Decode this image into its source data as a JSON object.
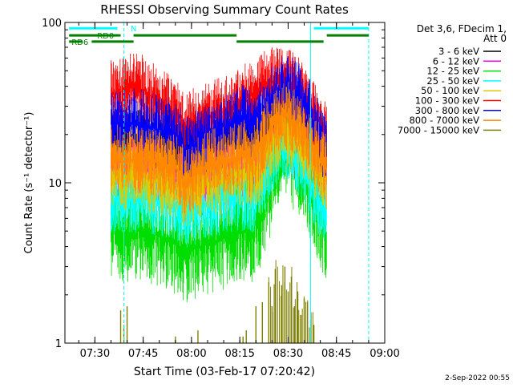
{
  "chart_data": {
    "type": "line",
    "title": "RHESSI Observing Summary Count Rates",
    "xlabel": "Start Time (03-Feb-17 07:20:42)",
    "ylabel": "Count Rate (s⁻¹ detector⁻¹)",
    "yscale": "log",
    "ylim": [
      1,
      100
    ],
    "xlim": [
      "07:20:42",
      "09:00:00"
    ],
    "x_ticks": [
      "07:30",
      "07:45",
      "08:00",
      "08:15",
      "08:30",
      "08:45",
      "09:00"
    ],
    "y_ticks": [
      "1",
      "10",
      "100"
    ],
    "legend_position": "right",
    "legend_header": [
      "Det 3,6, FDecim 1,",
      "Att 0"
    ],
    "timestamp": "2-Sep-2022 00:55",
    "x_units": "minutes after 07:00",
    "series": [
      {
        "name": "3 - 6 keV",
        "color": "#000000",
        "x": [
          35,
          38,
          42,
          45,
          48,
          52,
          56,
          58,
          62,
          66,
          70,
          73,
          76,
          79,
          82,
          84,
          86,
          88,
          90,
          92,
          94,
          96,
          97,
          98,
          99,
          100,
          101,
          102
        ],
        "y": [
          18,
          18,
          18,
          18,
          18,
          18,
          16.5,
          15,
          17,
          18,
          19,
          20,
          22,
          19,
          20,
          24,
          26,
          28,
          27,
          25,
          23,
          21,
          20,
          19,
          17,
          16.5,
          16,
          16
        ]
      },
      {
        "name": "6 - 12 keV",
        "color": "#ff00ff",
        "x": [
          35,
          38,
          42,
          45,
          48,
          52,
          56,
          58,
          62,
          66,
          70,
          73,
          76,
          79,
          82,
          84,
          86,
          88,
          90,
          92,
          94,
          96,
          97,
          98,
          99,
          100,
          101,
          102
        ],
        "y": [
          12,
          12,
          12,
          12,
          11.5,
          11,
          10,
          8.5,
          10,
          10.5,
          11,
          11.5,
          12,
          11,
          12.5,
          14.5,
          16.5,
          18.5,
          19,
          17.5,
          16,
          14.5,
          13.5,
          12.5,
          11.5,
          11,
          10.5,
          10
        ]
      },
      {
        "name": "12 - 25 keV",
        "color": "#00dd00",
        "x": [
          35,
          38,
          42,
          45,
          48,
          52,
          56,
          58,
          62,
          66,
          70,
          73,
          76,
          79,
          82,
          84,
          86,
          88,
          90,
          92,
          94,
          96,
          97,
          98,
          99,
          100,
          101,
          102
        ],
        "y": [
          5,
          5,
          5,
          5,
          4.8,
          4.5,
          4,
          3.6,
          4,
          4.2,
          4.5,
          4.8,
          5,
          5,
          6.5,
          9,
          12,
          14.5,
          15,
          14,
          12,
          10.5,
          9,
          8,
          7,
          6,
          5,
          4.5
        ]
      },
      {
        "name": "25 - 50 keV",
        "color": "#00ffff",
        "x": [
          35,
          38,
          42,
          45,
          48,
          52,
          56,
          58,
          62,
          66,
          70,
          73,
          76,
          79,
          82,
          84,
          86,
          88,
          90,
          92,
          94,
          96,
          97,
          98,
          99,
          100,
          101,
          102
        ],
        "y": [
          8,
          8,
          8,
          8,
          7.8,
          7.5,
          7,
          6.2,
          7,
          7.4,
          7.8,
          8,
          8.2,
          8,
          10,
          12.5,
          15.5,
          17.5,
          17,
          15,
          13,
          11,
          10,
          9,
          8,
          7.5,
          7,
          6.5
        ]
      },
      {
        "name": "50 - 100 keV",
        "color": "#ddcc00",
        "x": [
          35,
          38,
          42,
          45,
          48,
          52,
          56,
          58,
          62,
          66,
          70,
          73,
          76,
          79,
          82,
          84,
          86,
          88,
          90,
          92,
          94,
          96,
          97,
          98,
          99,
          100,
          101,
          102
        ],
        "y": [
          11,
          11,
          11,
          11,
          10.5,
          10,
          9.5,
          8.5,
          9.5,
          10,
          10.5,
          11,
          11.5,
          11,
          13,
          16,
          19,
          21,
          20.5,
          19,
          17,
          15,
          14,
          13,
          12,
          11.5,
          11,
          10.5
        ]
      },
      {
        "name": "100 - 300 keV",
        "color": "#ff0000",
        "x": [
          35,
          38,
          42,
          45,
          48,
          52,
          56,
          58,
          62,
          66,
          70,
          73,
          76,
          79,
          82,
          84,
          86,
          88,
          90,
          92,
          94,
          96,
          97,
          98,
          99,
          100,
          101,
          102
        ],
        "y": [
          35,
          37,
          40,
          38,
          34,
          30,
          26,
          23,
          24,
          26,
          28,
          30,
          33,
          36,
          40,
          42,
          43,
          43,
          42,
          40,
          35,
          30,
          28,
          26,
          24,
          22,
          21,
          20
        ]
      },
      {
        "name": "300 - 800 keV",
        "color": "#0000ff",
        "x": [
          35,
          38,
          42,
          45,
          48,
          52,
          56,
          58,
          62,
          66,
          70,
          73,
          76,
          79,
          82,
          84,
          86,
          88,
          90,
          92,
          94,
          96,
          97,
          98,
          99,
          100,
          101,
          102
        ],
        "y": [
          22,
          23,
          24,
          23,
          22,
          21,
          19,
          15,
          18,
          20,
          22,
          23,
          25,
          22,
          27,
          31,
          34,
          37,
          38,
          36,
          33,
          29,
          26,
          23,
          21,
          19,
          17,
          16
        ]
      },
      {
        "name": "800 - 7000 keV",
        "color": "#ff8800",
        "x": [
          35,
          38,
          42,
          45,
          48,
          52,
          56,
          58,
          62,
          66,
          70,
          73,
          76,
          79,
          82,
          84,
          86,
          88,
          90,
          92,
          94,
          96,
          97,
          98,
          99,
          100,
          101,
          102
        ],
        "y": [
          14,
          14,
          14,
          14,
          13.5,
          13,
          12,
          9.5,
          12,
          13,
          13.5,
          14,
          15,
          14,
          18,
          21,
          24,
          26,
          26,
          24,
          21,
          18,
          17,
          16,
          15,
          14,
          13,
          12
        ]
      },
      {
        "name": "7000 - 15000 keV",
        "color": "#808000",
        "x": [
          38,
          39,
          40,
          55,
          62,
          76,
          77,
          80,
          82,
          84,
          85,
          86,
          88,
          89,
          90,
          91,
          92,
          93,
          94,
          95,
          96,
          97,
          98
        ],
        "y": [
          1.6,
          1.3,
          1.7,
          1.1,
          1.2,
          1.1,
          1.2,
          1.7,
          1.8,
          2.4,
          1.7,
          2.9,
          2.3,
          3.0,
          2.1,
          2.6,
          1.7,
          2.1,
          1.5,
          1.9,
          1.8,
          1.4,
          1.3
        ]
      }
    ],
    "annotations": {
      "cyan_segments": [
        {
          "x": [
            22,
            37
          ],
          "y": 92,
          "label": ""
        },
        {
          "x": [
            42,
            42
          ],
          "y": 92,
          "label": "N"
        },
        {
          "x": [
            98,
            115
          ],
          "y": 92,
          "label": ""
        }
      ],
      "green_segments": [
        {
          "x": [
            22,
            38
          ],
          "y": 83,
          "label": "RD0"
        },
        {
          "x": [
            42,
            74
          ],
          "y": 83,
          "label": ""
        },
        {
          "x": [
            102,
            115
          ],
          "y": 83,
          "label": ""
        },
        {
          "x": [
            22,
            26
          ],
          "y": 76,
          "label": "RD6"
        },
        {
          "x": [
            29,
            42
          ],
          "y": 76,
          "label": ""
        },
        {
          "x": [
            74,
            101
          ],
          "y": 76,
          "label": ""
        }
      ],
      "vertical_lines": [
        {
          "x": 39,
          "color": "#00ffff",
          "style": "dashed"
        },
        {
          "x": 97,
          "color": "#00ffff",
          "style": "solid"
        },
        {
          "x": 115,
          "color": "#00ffff",
          "style": "dashed"
        }
      ]
    }
  }
}
